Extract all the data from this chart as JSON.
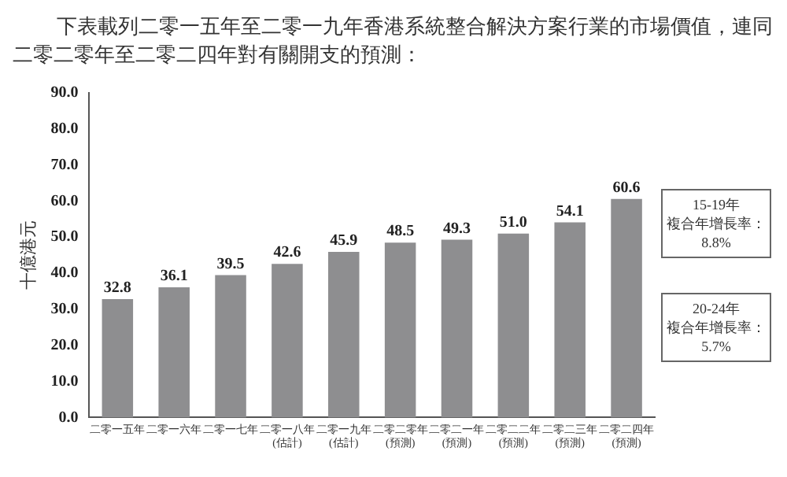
{
  "chart_data": {
    "type": "bar",
    "title": "下表載列二零一五年至二零一九年香港系統整合解決方案行業的市場價值，連同二零二零年至二零二四年對有關開支的預測：",
    "ylabel": "十億港元",
    "categories": [
      "二零一五年",
      "二零一六年",
      "二零一七年",
      "二零一八年\n(估計)",
      "二零一九年\n(估計)",
      "二零二零年\n(預測)",
      "二零二一年\n(預測)",
      "二零二二年\n(預測)",
      "二零二三年\n(預測)",
      "二零二四年\n(預測)"
    ],
    "values": [
      32.8,
      36.1,
      39.5,
      42.6,
      45.9,
      48.5,
      49.3,
      51.0,
      54.1,
      60.6
    ],
    "color": "#8e8e90",
    "value_labels": [
      "32.8",
      "36.1",
      "39.5",
      "42.6",
      "45.9",
      "48.5",
      "49.3",
      "51.0",
      "54.1",
      "60.6"
    ],
    "ylim": [
      0,
      90
    ],
    "yticks": [
      {
        "value": 0,
        "label": "0.0"
      },
      {
        "value": 10,
        "label": "10.0"
      },
      {
        "value": 20,
        "label": "20.0"
      },
      {
        "value": 30,
        "label": "30.0"
      },
      {
        "value": 40,
        "label": "40.0"
      },
      {
        "value": 50,
        "label": "50.0"
      },
      {
        "value": 60,
        "label": "60.0"
      },
      {
        "value": 70,
        "label": "70.0"
      },
      {
        "value": 80,
        "label": "80.0"
      },
      {
        "value": 90,
        "label": "90.0"
      }
    ],
    "grid": false,
    "legend": false,
    "annotations": [
      "15-19年",
      "複合年增長率：",
      "8.8%",
      "20-24年",
      "複合年增長率：",
      "5.7%"
    ]
  }
}
